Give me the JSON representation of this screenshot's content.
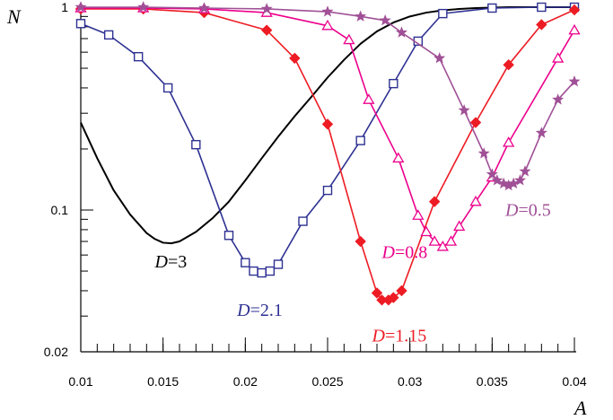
{
  "chart_data": {
    "type": "line",
    "xlabel": "A",
    "ylabel": "N",
    "xlim": [
      0.01,
      0.04
    ],
    "ylim": [
      0.02,
      1
    ],
    "yscale": "log",
    "grid": false,
    "x_ticks": [
      "0.01",
      "0.015",
      "0.02",
      "0.025",
      "0.03",
      "0.035",
      "0.04"
    ],
    "y_ticks": [
      {
        "value": 0.02,
        "label": "0.02"
      },
      {
        "value": 0.1,
        "label": "0.1"
      },
      {
        "value": 1,
        "label": "1"
      }
    ],
    "series": [
      {
        "name": "D=3",
        "color": "#000000",
        "marker": "none",
        "label_parts": [
          "D",
          "=3"
        ],
        "label_at": [
          0.0145,
          0.052
        ],
        "x": [
          0.01,
          0.011,
          0.012,
          0.013,
          0.014,
          0.0145,
          0.015,
          0.0155,
          0.016,
          0.017,
          0.018,
          0.019,
          0.02,
          0.021,
          0.022,
          0.023,
          0.024,
          0.025,
          0.026,
          0.027,
          0.028,
          0.029,
          0.03,
          0.031,
          0.032,
          0.033,
          0.034,
          0.035,
          0.036,
          0.037,
          0.038,
          0.039,
          0.04
        ],
        "y": [
          0.27,
          0.18,
          0.125,
          0.095,
          0.077,
          0.072,
          0.069,
          0.0685,
          0.07,
          0.078,
          0.091,
          0.11,
          0.14,
          0.18,
          0.23,
          0.29,
          0.36,
          0.45,
          0.55,
          0.66,
          0.76,
          0.84,
          0.9,
          0.94,
          0.965,
          0.98,
          0.99,
          0.995,
          1.0,
          1.0,
          1.0,
          1.0,
          1.0
        ]
      },
      {
        "name": "D=2.1",
        "color": "#2e3192",
        "marker": "square",
        "label_parts": [
          "D",
          "=2.1"
        ],
        "label_at": [
          0.0195,
          0.03
        ],
        "x": [
          0.01,
          0.0117,
          0.0135,
          0.0153,
          0.017,
          0.019,
          0.02,
          0.0205,
          0.021,
          0.0215,
          0.022,
          0.0235,
          0.025,
          0.027,
          0.029,
          0.0305,
          0.032,
          0.035,
          0.038,
          0.04
        ],
        "y": [
          0.83,
          0.73,
          0.57,
          0.4,
          0.21,
          0.075,
          0.055,
          0.05,
          0.049,
          0.05,
          0.054,
          0.088,
          0.125,
          0.22,
          0.42,
          0.68,
          0.93,
          0.99,
          1.0,
          1.0
        ]
      },
      {
        "name": "D=1.15",
        "color": "#ed1c24",
        "marker": "diamond",
        "label_parts": [
          "D",
          "=1.15"
        ],
        "label_at": [
          0.0277,
          0.0225
        ],
        "x": [
          0.01,
          0.0138,
          0.0175,
          0.0213,
          0.023,
          0.025,
          0.027,
          0.028,
          0.0283,
          0.0287,
          0.029,
          0.0295,
          0.0315,
          0.034,
          0.036,
          0.038,
          0.04
        ],
        "y": [
          0.98,
          0.98,
          0.94,
          0.77,
          0.56,
          0.265,
          0.07,
          0.039,
          0.036,
          0.036,
          0.037,
          0.04,
          0.11,
          0.27,
          0.52,
          0.82,
          0.97
        ]
      },
      {
        "name": "D=0.8",
        "color": "#ec008c",
        "marker": "triangle",
        "label_parts": [
          "D",
          "=0.8"
        ],
        "label_at": [
          0.0283,
          0.058
        ],
        "x": [
          0.01,
          0.0138,
          0.0175,
          0.0213,
          0.025,
          0.0263,
          0.0275,
          0.0293,
          0.0305,
          0.031,
          0.0315,
          0.032,
          0.0325,
          0.033,
          0.034,
          0.035,
          0.036,
          0.039,
          0.04
        ],
        "y": [
          0.99,
          0.99,
          0.98,
          0.94,
          0.81,
          0.69,
          0.35,
          0.18,
          0.094,
          0.078,
          0.07,
          0.066,
          0.07,
          0.083,
          0.11,
          0.145,
          0.215,
          0.56,
          0.77
        ]
      },
      {
        "name": "D=0.5",
        "color": "#a05096",
        "marker": "star",
        "label_parts": [
          "D",
          "=0.5"
        ],
        "label_at": [
          0.0358,
          0.0935
        ],
        "x": [
          0.01,
          0.0138,
          0.0175,
          0.0213,
          0.025,
          0.027,
          0.0285,
          0.0295,
          0.0318,
          0.0333,
          0.0345,
          0.035,
          0.0353,
          0.0357,
          0.036,
          0.0363,
          0.0367,
          0.037,
          0.038,
          0.039,
          0.04
        ],
        "y": [
          1.0,
          1.0,
          0.99,
          0.98,
          0.95,
          0.9,
          0.86,
          0.75,
          0.56,
          0.31,
          0.19,
          0.15,
          0.14,
          0.135,
          0.132,
          0.135,
          0.14,
          0.155,
          0.24,
          0.35,
          0.43
        ]
      }
    ]
  }
}
